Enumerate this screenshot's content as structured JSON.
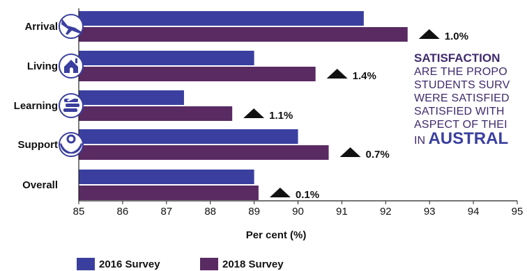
{
  "chart_data": {
    "type": "bar",
    "orientation": "horizontal",
    "categories": [
      "Arrival",
      "Living",
      "Learning",
      "Support",
      "Overall"
    ],
    "category_icons": [
      "airplane-icon",
      "home-icon",
      "books-icon",
      "support-hands-icon",
      null
    ],
    "series": [
      {
        "name": "2016 Survey",
        "color": "#3a3f9f",
        "values": [
          91.5,
          89.0,
          87.4,
          90.0,
          89.0
        ]
      },
      {
        "name": "2018 Survey",
        "color": "#5a2a63",
        "values": [
          92.5,
          90.4,
          88.5,
          90.7,
          89.1
        ]
      }
    ],
    "deltas": [
      "1.0%",
      "1.4%",
      "1.1%",
      "0.7%",
      "0.1%"
    ],
    "xlim": [
      85,
      95
    ],
    "x_ticks": [
      "85",
      "86",
      "87",
      "88",
      "89",
      "90",
      "91",
      "92",
      "93",
      "94",
      "95"
    ],
    "xlabel": "Per cent (%)",
    "legend_position": "bottom-left"
  },
  "note": {
    "title": "SATISFACTION",
    "lines": [
      "ARE THE PROPO",
      "STUDENTS SURV",
      "WERE SATISFIED",
      "SATISFIED WITH",
      "ASPECT OF THEI"
    ],
    "last_prefix": "IN ",
    "last_emph": "AUSTRAL"
  },
  "legend": {
    "item1": {
      "label": "2016 Survey",
      "color": "#3a3f9f"
    },
    "item2": {
      "label": "2018 Survey",
      "color": "#5a2a63"
    }
  }
}
